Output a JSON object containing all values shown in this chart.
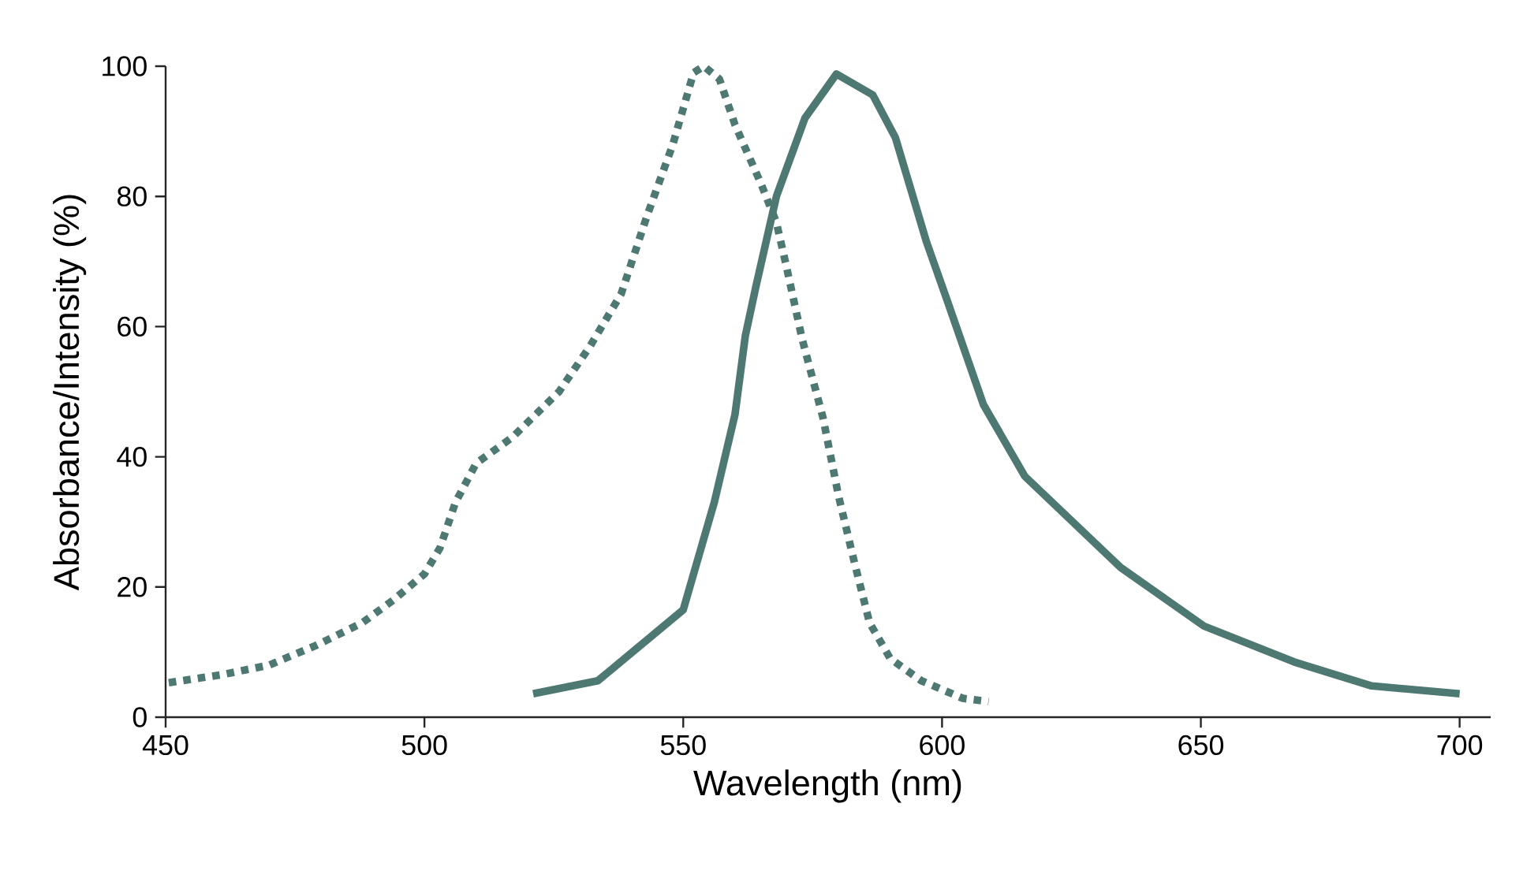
{
  "chart_data": {
    "type": "line",
    "xlabel": "Wavelength (nm)",
    "ylabel": "Absorbance/Intensity (%)",
    "xlim": [
      450,
      706
    ],
    "ylim": [
      0,
      100
    ],
    "xticks": [
      450,
      500,
      550,
      600,
      650,
      700
    ],
    "yticks": [
      0,
      20,
      40,
      60,
      80,
      100
    ],
    "grid": false,
    "series": [
      {
        "color": "#4e7872",
        "line_style": "dotted",
        "x": [
          450.6,
          460.7,
          470,
          479,
          488,
          494,
          500,
          503,
          506,
          510,
          517,
          526,
          532,
          538,
          543,
          548,
          552,
          554,
          557,
          560,
          565,
          568,
          570,
          573,
          577,
          580,
          583,
          586,
          590,
          596,
          604,
          609
        ],
        "values": [
          5.3,
          6.5,
          8,
          11,
          14.5,
          18,
          22,
          26,
          33,
          39,
          43,
          50,
          57,
          65,
          77,
          88,
          99,
          100,
          98,
          91,
          82,
          76,
          69,
          58,
          46,
          34,
          24,
          14.5,
          9,
          5.6,
          2.9,
          2.4
        ]
      },
      {
        "color": "#4e7872",
        "line_style": "solid",
        "x": [
          521,
          533.5,
          550,
          556,
          560,
          562,
          564,
          568,
          573.5,
          579.6,
          586.6,
          591,
          597,
          601,
          608,
          616,
          634.5,
          650.6,
          668,
          683,
          700
        ],
        "values": [
          3.6,
          5.6,
          16.5,
          33,
          46.5,
          58.6,
          66,
          80,
          92,
          98.8,
          95.6,
          89,
          73,
          64,
          48,
          37,
          23,
          14,
          8.5,
          4.8,
          3.6
        ]
      }
    ]
  }
}
